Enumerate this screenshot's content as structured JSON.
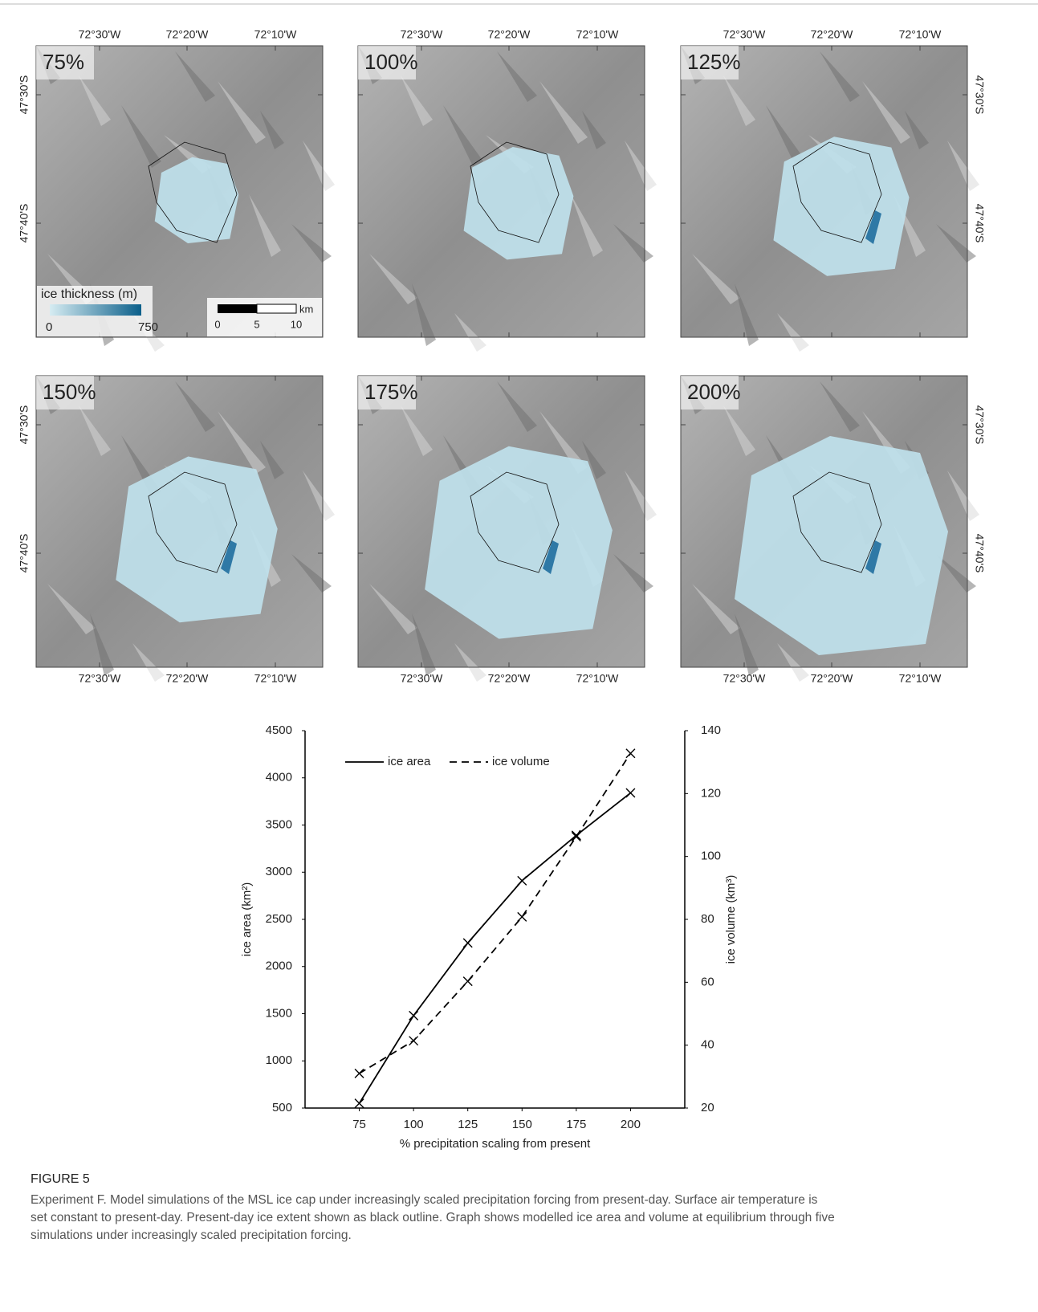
{
  "maps": {
    "panels": [
      {
        "label": "75%"
      },
      {
        "label": "100%"
      },
      {
        "label": "125%"
      },
      {
        "label": "150%"
      },
      {
        "label": "175%"
      },
      {
        "label": "200%"
      }
    ],
    "lon_labels": [
      "72°30'W",
      "72°20'W",
      "72°10'W"
    ],
    "lat_labels": [
      "47°30'S",
      "47°40'S"
    ],
    "legend": {
      "title": "ice thickness (m)",
      "min": "0",
      "max": "750"
    },
    "scale_bar": {
      "ticks": [
        "0",
        "5",
        "10"
      ],
      "unit": "km"
    }
  },
  "chart_data": {
    "type": "line",
    "xlabel": "% precipitation scaling from present",
    "ylabel": "ice area (km²)",
    "y2label": "ice volume (km³)",
    "x": [
      75,
      100,
      125,
      150,
      175,
      200
    ],
    "xlim": [
      50,
      225
    ],
    "xticks": [
      75,
      100,
      125,
      150,
      175,
      200
    ],
    "ylim": [
      500,
      4500
    ],
    "yticks": [
      500,
      1000,
      1500,
      2000,
      2500,
      3000,
      3500,
      4000,
      4500
    ],
    "y2lim": [
      20,
      140
    ],
    "y2ticks": [
      20,
      40,
      60,
      80,
      100,
      120,
      140
    ],
    "legend": "upper left",
    "grid": false,
    "series": [
      {
        "name": "ice area",
        "color": "#000000",
        "linestyle": "solid",
        "values": [
          550,
          1480,
          2250,
          2910,
          3390,
          3840
        ]
      },
      {
        "name": "ice volume",
        "color": "#000000",
        "linestyle": "dashed",
        "axis": "y2",
        "values": [
          31,
          41.4,
          60.3,
          80.8,
          106.3,
          132.8
        ]
      }
    ]
  },
  "caption": {
    "label": "FIGURE 5",
    "lines": [
      "Experiment F. Model simulations of the MSL ice cap under increasingly scaled precipitation forcing from present-day. Surface air temperature is",
      "set constant to present-day. Present-day ice extent shown as black outline. Graph shows modelled ice area and volume at equilibrium through five",
      "simulations under increasingly scaled precipitation forcing."
    ]
  }
}
